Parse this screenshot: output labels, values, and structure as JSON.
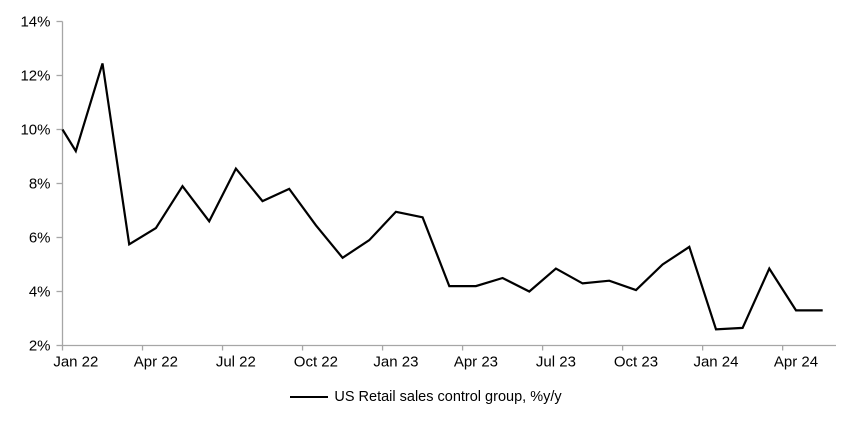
{
  "chart_data": {
    "type": "line",
    "title": "",
    "xlabel": "",
    "ylabel": "",
    "categories": [
      "Jan 22",
      "Feb 22",
      "Mar 22",
      "Apr 22",
      "May 22",
      "Jun 22",
      "Jul 22",
      "Aug 22",
      "Sep 22",
      "Oct 22",
      "Nov 22",
      "Dec 22",
      "Jan 23",
      "Feb 23",
      "Mar 23",
      "Apr 23",
      "May 23",
      "Jun 23",
      "Jul 23",
      "Aug 23",
      "Sep 23",
      "Oct 23",
      "Nov 23",
      "Dec 23",
      "Jan 24",
      "Feb 24",
      "Mar 24",
      "Apr 24",
      "May 24"
    ],
    "series": [
      {
        "name": "US Retail sales control group, %y/y",
        "color": "#000000",
        "values": [
          9.2,
          12.45,
          5.75,
          6.35,
          7.9,
          6.6,
          8.55,
          7.35,
          7.8,
          6.45,
          5.25,
          5.9,
          6.95,
          6.75,
          4.2,
          4.2,
          4.5,
          4.0,
          4.85,
          4.3,
          4.4,
          4.05,
          5.0,
          5.65,
          2.6,
          2.65,
          4.85,
          3.3,
          3.3
        ]
      }
    ],
    "edge_start_value": 10.0,
    "ylim": [
      2,
      14
    ],
    "y_tick_step": 2,
    "y_tick_labels": [
      "2%",
      "4%",
      "6%",
      "8%",
      "10%",
      "12%",
      "14%"
    ],
    "x_tick_labels": [
      "Jan 22",
      "Apr 22",
      "Jul 22",
      "Oct 22",
      "Jan 23",
      "Apr 23",
      "Jul 23",
      "Oct 23",
      "Jan 24",
      "Apr 24"
    ],
    "x_ticks_every_n_categories": 3,
    "grid": false,
    "legend_position": "bottom-center",
    "axis_color": "#a6a6a6",
    "tick_label_color": "#000000",
    "line_color": "#000000",
    "background_color": "#ffffff"
  },
  "legend": {
    "label": "US Retail sales control group, %y/y"
  }
}
